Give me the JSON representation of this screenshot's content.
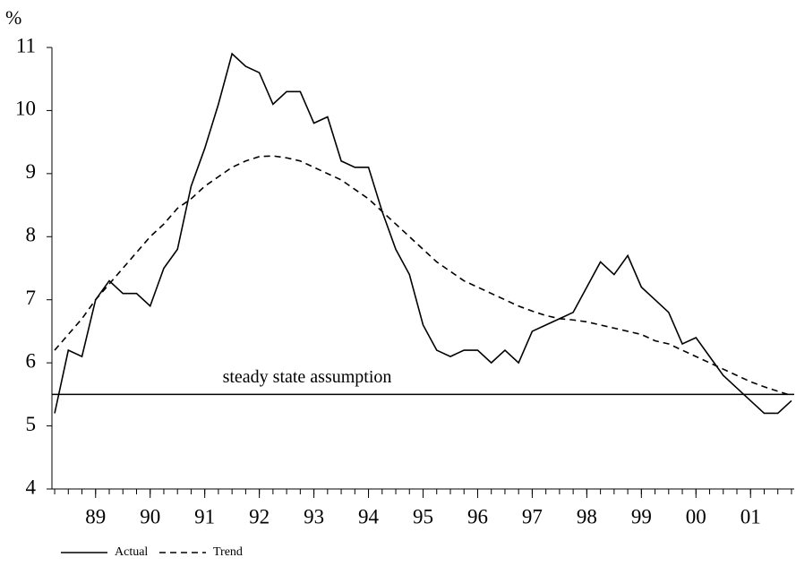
{
  "chart_data": {
    "type": "line",
    "y_label": "%",
    "x": [
      1988.25,
      1988.5,
      1988.75,
      1989,
      1989.25,
      1989.5,
      1989.75,
      1990,
      1990.25,
      1990.5,
      1990.75,
      1991,
      1991.25,
      1991.5,
      1991.75,
      1992,
      1992.25,
      1992.5,
      1992.75,
      1993,
      1993.25,
      1993.5,
      1993.75,
      1994,
      1994.25,
      1994.5,
      1994.75,
      1995,
      1995.25,
      1995.5,
      1995.75,
      1996,
      1996.25,
      1996.5,
      1996.75,
      1997,
      1997.25,
      1997.5,
      1997.75,
      1998,
      1998.25,
      1998.5,
      1998.75,
      1999,
      1999.25,
      1999.5,
      1999.75,
      2000,
      2000.25,
      2000.5,
      2000.75,
      2001,
      2001.25,
      2001.5,
      2001.75
    ],
    "series": [
      {
        "name": "Actual",
        "color": "#000000",
        "dash": "solid",
        "values": [
          5.2,
          6.2,
          6.1,
          7.0,
          7.3,
          7.1,
          7.1,
          6.9,
          7.5,
          7.8,
          8.8,
          9.4,
          10.1,
          10.9,
          10.7,
          10.6,
          10.1,
          10.3,
          10.3,
          9.8,
          9.9,
          9.2,
          9.1,
          9.1,
          8.4,
          7.8,
          7.4,
          6.6,
          6.2,
          6.1,
          6.2,
          6.2,
          6.0,
          6.2,
          6.0,
          6.5,
          6.6,
          6.7,
          6.8,
          7.2,
          7.6,
          7.4,
          7.7,
          7.2,
          7.0,
          6.8,
          6.3,
          6.4,
          6.1,
          5.8,
          5.6,
          5.4,
          5.2,
          5.2,
          5.4
        ]
      },
      {
        "name": "Trend",
        "color": "#000000",
        "dash": "dashed",
        "values": [
          6.2,
          6.45,
          6.7,
          7.0,
          7.25,
          7.5,
          7.75,
          8.0,
          8.2,
          8.45,
          8.6,
          8.8,
          8.95,
          9.1,
          9.2,
          9.27,
          9.28,
          9.25,
          9.2,
          9.1,
          9.0,
          8.9,
          8.75,
          8.6,
          8.4,
          8.2,
          8.0,
          7.8,
          7.6,
          7.45,
          7.3,
          7.2,
          7.1,
          7.0,
          6.9,
          6.82,
          6.75,
          6.7,
          6.68,
          6.65,
          6.6,
          6.55,
          6.5,
          6.45,
          6.35,
          6.3,
          6.2,
          6.1,
          6.0,
          5.9,
          5.8,
          5.7,
          5.62,
          5.55,
          5.48
        ]
      }
    ],
    "reference_line": {
      "value": 5.5,
      "label": "steady state assumption"
    },
    "xlim": [
      1988.2,
      2001.8
    ],
    "xticks": [
      {
        "value": 1989,
        "label": "89"
      },
      {
        "value": 1990,
        "label": "90"
      },
      {
        "value": 1991,
        "label": "91"
      },
      {
        "value": 1992,
        "label": "92"
      },
      {
        "value": 1993,
        "label": "93"
      },
      {
        "value": 1994,
        "label": "94"
      },
      {
        "value": 1995,
        "label": "95"
      },
      {
        "value": 1996,
        "label": "96"
      },
      {
        "value": 1997,
        "label": "97"
      },
      {
        "value": 1998,
        "label": "98"
      },
      {
        "value": 1999,
        "label": "99"
      },
      {
        "value": 2000,
        "label": "00"
      },
      {
        "value": 2001,
        "label": "01"
      }
    ],
    "ylim": [
      4,
      11
    ],
    "yticks": [
      4,
      5,
      6,
      7,
      8,
      9,
      10,
      11
    ],
    "grid": false,
    "legend": "bottom-left"
  }
}
